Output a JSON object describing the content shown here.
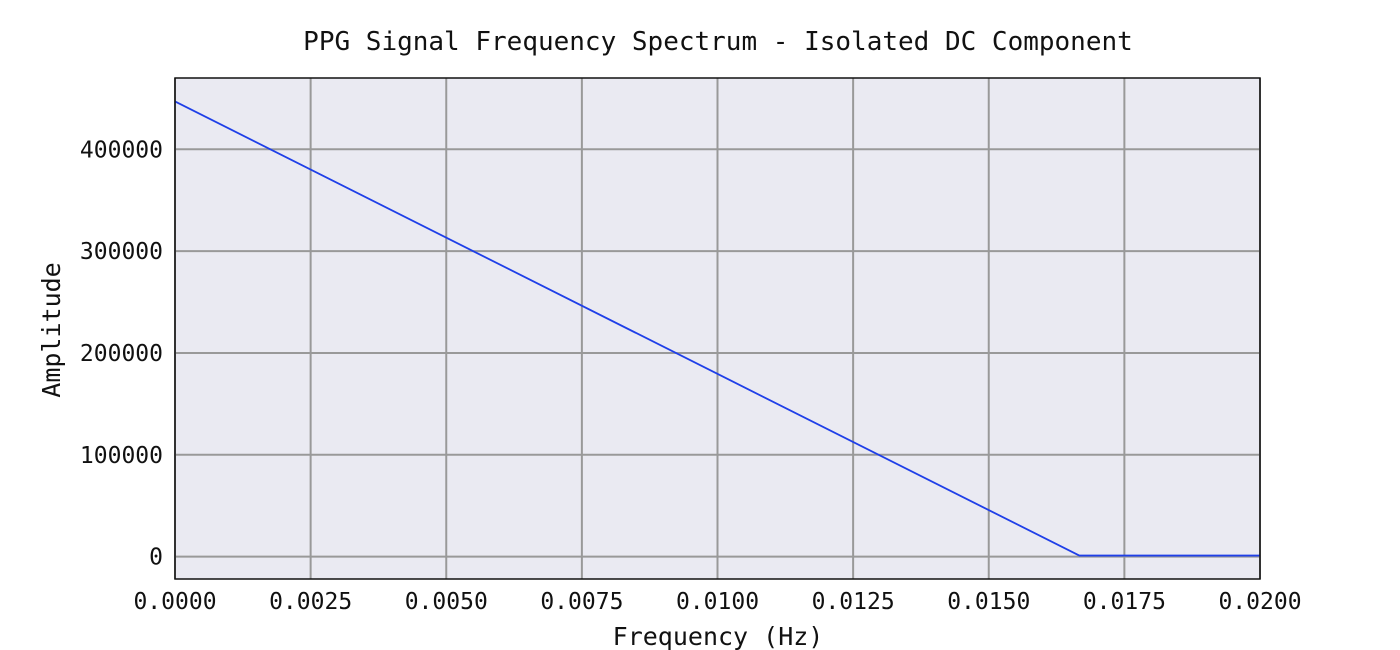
{
  "chart_data": {
    "type": "line",
    "title": "PPG Signal Frequency Spectrum - Isolated DC Component",
    "xlabel": "Frequency (Hz)",
    "ylabel": "Amplitude",
    "xlim": [
      0.0,
      0.02
    ],
    "ylim": [
      -22000,
      470000
    ],
    "xticks": [
      0.0,
      0.0025,
      0.005,
      0.0075,
      0.01,
      0.0125,
      0.015,
      0.0175,
      0.02
    ],
    "xtick_labels": [
      "0.0000",
      "0.0025",
      "0.0050",
      "0.0075",
      "0.0100",
      "0.0125",
      "0.0150",
      "0.0175",
      "0.0200"
    ],
    "yticks": [
      0,
      100000,
      200000,
      300000,
      400000
    ],
    "ytick_labels": [
      "0",
      "100000",
      "200000",
      "300000",
      "400000"
    ],
    "grid": true,
    "background_color": "#eaeaf2",
    "grid_color": "#999999",
    "series": [
      {
        "color": "#1f3fe8",
        "x": [
          0.0,
          0.01667,
          0.02
        ],
        "y": [
          447000,
          1000,
          1000
        ]
      }
    ]
  }
}
